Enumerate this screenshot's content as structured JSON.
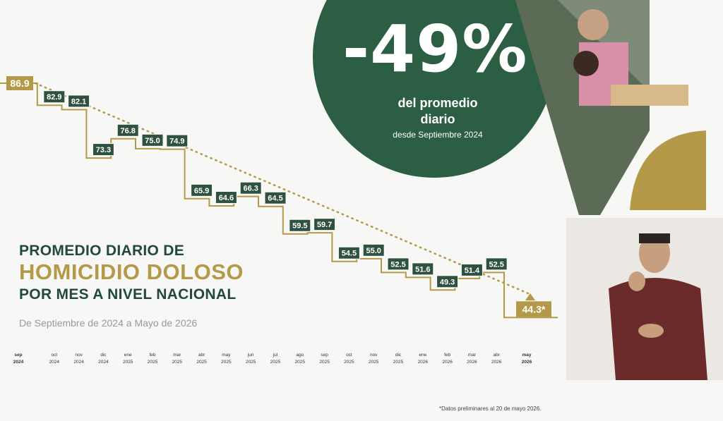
{
  "header": {
    "percent": "-49%",
    "line1": "del promedio",
    "line2": "diario",
    "line3": "desde Septiembre 2024"
  },
  "title": {
    "line1": "PROMEDIO DIARIO DE",
    "line2": "HOMICIDIO DOLOSO",
    "line3": "POR MES A NIVEL NACIONAL"
  },
  "subtitle": "De Septiembre de 2024 a Mayo de 2026",
  "footnote": "*Datos preliminares al 20 de mayo 2026.",
  "colors": {
    "green": "#23493a",
    "gold": "#b49a48",
    "label_bg": "#2f5240"
  },
  "chart_data": {
    "type": "line",
    "title": "PROMEDIO DIARIO DE HOMICIDIO DOLOSO POR MES A NIVEL NACIONAL",
    "subtitle": "De Septiembre de 2024 a Mayo de 2026",
    "step": true,
    "trend_line": "dotted",
    "months": [
      "sep",
      "oct",
      "nov",
      "dic",
      "ene",
      "feb",
      "mar",
      "abr",
      "may",
      "jun",
      "jul",
      "ago",
      "sep",
      "oct",
      "nov",
      "dic",
      "ene",
      "feb",
      "mar",
      "abr",
      "may"
    ],
    "years": [
      "2024",
      "2024",
      "2024",
      "2024",
      "2025",
      "2025",
      "2025",
      "2025",
      "2025",
      "2025",
      "2025",
      "2025",
      "2025",
      "2025",
      "2025",
      "2025",
      "2026",
      "2026",
      "2026",
      "2026",
      "2026"
    ],
    "labels": [
      "86.9",
      "82.9",
      "82.1",
      "73.3",
      "76.8",
      "75.0",
      "74.9",
      "65.9",
      "64.6",
      "66.3",
      "64.5",
      "59.5",
      "59.7",
      "54.5",
      "55.0",
      "52.5",
      "51.6",
      "49.3",
      "51.4",
      "52.5",
      "44.3*"
    ],
    "values": [
      86.9,
      82.9,
      82.1,
      73.3,
      76.8,
      75.0,
      74.9,
      65.9,
      64.6,
      66.3,
      64.5,
      59.5,
      59.7,
      54.5,
      55.0,
      52.5,
      51.6,
      49.3,
      51.4,
      52.5,
      44.3
    ]
  }
}
